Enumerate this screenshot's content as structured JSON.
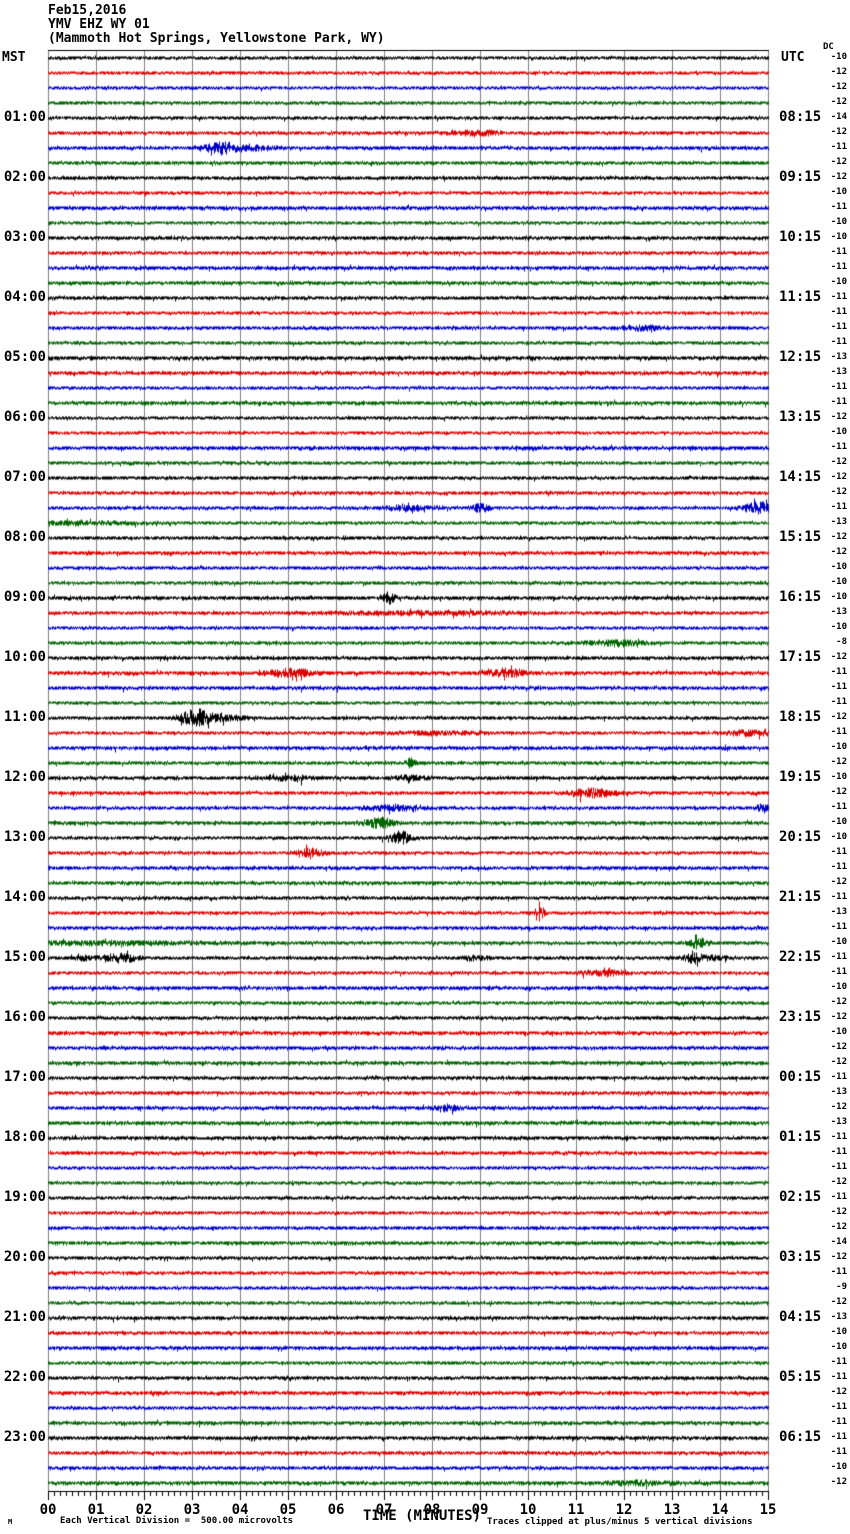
{
  "header": {
    "date": "Feb15,2016",
    "station": "YMV EHZ WY 01",
    "location": "(Mammoth Hot Springs, Yellowstone Park, WY)"
  },
  "axes": {
    "left_label": "MST",
    "right_label": "UTC",
    "dc_label": "DC",
    "x_title": "TIME (MINUTES)",
    "x_ticks": [
      "00",
      "01",
      "02",
      "03",
      "04",
      "05",
      "06",
      "07",
      "08",
      "09",
      "10",
      "11",
      "12",
      "13",
      "14",
      "15"
    ]
  },
  "footer": {
    "scale_note": "Each Vertical Division =  500.00 microvolts",
    "clip_note": "Traces clipped at plus/minus 5 vertical divisions",
    "corner_mark": "M"
  },
  "chart_data": {
    "type": "line",
    "subtype": "helicorder-seismogram",
    "x_range_minutes": [
      0,
      15
    ],
    "minutes_per_line": 15,
    "vertical_division_microvolts": 500.0,
    "clip_divisions": 5,
    "grid": true,
    "trace_colors": {
      "black": "#000000",
      "red": "#dd0000",
      "blue": "#0000cc",
      "green": "#006600"
    },
    "grid_color": "#808080",
    "rows": [
      {
        "m": "",
        "u": "",
        "c": "black",
        "dc": -10
      },
      {
        "m": "",
        "u": "",
        "c": "red",
        "dc": -12
      },
      {
        "m": "",
        "u": "",
        "c": "blue",
        "dc": -12
      },
      {
        "m": "",
        "u": "",
        "c": "green",
        "dc": -12
      },
      {
        "m": "01:00",
        "u": "08:15",
        "c": "black",
        "dc": -14
      },
      {
        "m": "",
        "u": "",
        "c": "red",
        "dc": -12,
        "e": [
          [
            8.9,
            0.3,
            2.5
          ]
        ]
      },
      {
        "m": "",
        "u": "",
        "c": "blue",
        "dc": -11,
        "e": [
          [
            3.6,
            0.25,
            5
          ],
          [
            4.25,
            0.3,
            2
          ]
        ]
      },
      {
        "m": "",
        "u": "",
        "c": "green",
        "dc": -12
      },
      {
        "m": "02:00",
        "u": "09:15",
        "c": "black",
        "dc": -12
      },
      {
        "m": "",
        "u": "",
        "c": "red",
        "dc": -10
      },
      {
        "m": "",
        "u": "",
        "c": "blue",
        "dc": -11
      },
      {
        "m": "",
        "u": "",
        "c": "green",
        "dc": -10
      },
      {
        "m": "03:00",
        "u": "10:15",
        "c": "black",
        "dc": -10
      },
      {
        "m": "",
        "u": "",
        "c": "red",
        "dc": -11
      },
      {
        "m": "",
        "u": "",
        "c": "blue",
        "dc": -11
      },
      {
        "m": "",
        "u": "",
        "c": "green",
        "dc": -10
      },
      {
        "m": "04:00",
        "u": "11:15",
        "c": "black",
        "dc": -11
      },
      {
        "m": "",
        "u": "",
        "c": "red",
        "dc": -11
      },
      {
        "m": "",
        "u": "",
        "c": "blue",
        "dc": -11,
        "e": [
          [
            12.4,
            0.3,
            1.8
          ]
        ]
      },
      {
        "m": "",
        "u": "",
        "c": "green",
        "dc": -11
      },
      {
        "m": "05:00",
        "u": "12:15",
        "c": "black",
        "dc": -13
      },
      {
        "m": "",
        "u": "",
        "c": "red",
        "dc": -13
      },
      {
        "m": "",
        "u": "",
        "c": "blue",
        "dc": -11
      },
      {
        "m": "",
        "u": "",
        "c": "green",
        "dc": -11
      },
      {
        "m": "06:00",
        "u": "13:15",
        "c": "black",
        "dc": -12
      },
      {
        "m": "",
        "u": "",
        "c": "red",
        "dc": -10
      },
      {
        "m": "",
        "u": "",
        "c": "blue",
        "dc": -11
      },
      {
        "m": "",
        "u": "",
        "c": "green",
        "dc": -12
      },
      {
        "m": "07:00",
        "u": "14:15",
        "c": "black",
        "dc": -12
      },
      {
        "m": "",
        "u": "",
        "c": "red",
        "dc": -12
      },
      {
        "m": "",
        "u": "",
        "c": "blue",
        "dc": -11,
        "e": [
          [
            7.5,
            0.4,
            2
          ],
          [
            9.0,
            0.12,
            4
          ],
          [
            14.8,
            0.2,
            6
          ]
        ]
      },
      {
        "m": "",
        "u": "",
        "c": "green",
        "dc": -13,
        "e": [
          [
            0.6,
            0.8,
            1.5
          ]
        ]
      },
      {
        "m": "08:00",
        "u": "15:15",
        "c": "black",
        "dc": -12
      },
      {
        "m": "",
        "u": "",
        "c": "red",
        "dc": -12
      },
      {
        "m": "",
        "u": "",
        "c": "blue",
        "dc": -10
      },
      {
        "m": "",
        "u": "",
        "c": "green",
        "dc": -10
      },
      {
        "m": "09:00",
        "u": "16:15",
        "c": "black",
        "dc": -10,
        "e": [
          [
            7.1,
            0.08,
            5
          ]
        ]
      },
      {
        "m": "",
        "u": "",
        "c": "red",
        "dc": -13,
        "e": [
          [
            7.8,
            1.2,
            1.5
          ]
        ]
      },
      {
        "m": "",
        "u": "",
        "c": "blue",
        "dc": -10
      },
      {
        "m": "",
        "u": "",
        "c": "green",
        "dc": -8,
        "e": [
          [
            11.8,
            0.4,
            2.5
          ]
        ]
      },
      {
        "m": "10:00",
        "u": "17:15",
        "c": "black",
        "dc": -12
      },
      {
        "m": "",
        "u": "",
        "c": "red",
        "dc": -11,
        "e": [
          [
            5.05,
            0.3,
            3.5
          ],
          [
            9.55,
            0.25,
            3.5
          ]
        ]
      },
      {
        "m": "",
        "u": "",
        "c": "blue",
        "dc": -11
      },
      {
        "m": "",
        "u": "",
        "c": "green",
        "dc": -11
      },
      {
        "m": "11:00",
        "u": "18:15",
        "c": "black",
        "dc": -12,
        "e": [
          [
            3.05,
            0.22,
            7
          ],
          [
            3.6,
            0.35,
            2.5
          ]
        ]
      },
      {
        "m": "",
        "u": "",
        "c": "red",
        "dc": -11,
        "e": [
          [
            8.1,
            0.7,
            1.5
          ],
          [
            14.6,
            0.35,
            2.5
          ]
        ]
      },
      {
        "m": "",
        "u": "",
        "c": "blue",
        "dc": -10
      },
      {
        "m": "",
        "u": "",
        "c": "green",
        "dc": -12,
        "e": [
          [
            7.55,
            0.06,
            4
          ]
        ]
      },
      {
        "m": "12:00",
        "u": "19:15",
        "c": "black",
        "dc": -10,
        "e": [
          [
            5.1,
            0.3,
            2
          ],
          [
            7.55,
            0.25,
            2
          ]
        ]
      },
      {
        "m": "",
        "u": "",
        "c": "red",
        "dc": -12,
        "e": [
          [
            11.35,
            0.3,
            4
          ]
        ]
      },
      {
        "m": "",
        "u": "",
        "c": "blue",
        "dc": -11,
        "e": [
          [
            7.2,
            0.4,
            2.5
          ],
          [
            14.9,
            0.12,
            3
          ]
        ]
      },
      {
        "m": "",
        "u": "",
        "c": "green",
        "dc": -10,
        "e": [
          [
            6.9,
            0.2,
            4.5
          ]
        ]
      },
      {
        "m": "13:00",
        "u": "20:15",
        "c": "black",
        "dc": -10,
        "e": [
          [
            7.35,
            0.15,
            6
          ]
        ]
      },
      {
        "m": "",
        "u": "",
        "c": "red",
        "dc": -11,
        "e": [
          [
            5.45,
            0.2,
            4
          ]
        ]
      },
      {
        "m": "",
        "u": "",
        "c": "blue",
        "dc": -11
      },
      {
        "m": "",
        "u": "",
        "c": "green",
        "dc": -12
      },
      {
        "m": "14:00",
        "u": "21:15",
        "c": "black",
        "dc": -11
      },
      {
        "m": "",
        "u": "",
        "c": "red",
        "dc": -13,
        "e": [
          [
            10.25,
            0.06,
            7
          ]
        ]
      },
      {
        "m": "",
        "u": "",
        "c": "blue",
        "dc": -11
      },
      {
        "m": "",
        "u": "",
        "c": "green",
        "dc": -10,
        "e": [
          [
            1.2,
            1.5,
            1.2
          ],
          [
            13.55,
            0.12,
            5
          ]
        ]
      },
      {
        "m": "15:00",
        "u": "22:15",
        "c": "black",
        "dc": -11,
        "e": [
          [
            0.75,
            0.15,
            2
          ],
          [
            1.5,
            0.25,
            4
          ],
          [
            8.9,
            0.2,
            2
          ],
          [
            13.45,
            0.15,
            4.5
          ],
          [
            13.9,
            0.15,
            2
          ]
        ]
      },
      {
        "m": "",
        "u": "",
        "c": "red",
        "dc": -11,
        "e": [
          [
            11.55,
            0.3,
            2.5
          ]
        ]
      },
      {
        "m": "",
        "u": "",
        "c": "blue",
        "dc": -10
      },
      {
        "m": "",
        "u": "",
        "c": "green",
        "dc": -12
      },
      {
        "m": "16:00",
        "u": "23:15",
        "c": "black",
        "dc": -12
      },
      {
        "m": "",
        "u": "",
        "c": "red",
        "dc": -10
      },
      {
        "m": "",
        "u": "",
        "c": "blue",
        "dc": -12
      },
      {
        "m": "",
        "u": "",
        "c": "green",
        "dc": -12
      },
      {
        "m": "17:00",
        "u": "00:15",
        "c": "black",
        "dc": -11
      },
      {
        "m": "",
        "u": "",
        "c": "red",
        "dc": -13
      },
      {
        "m": "",
        "u": "",
        "c": "blue",
        "dc": -12,
        "e": [
          [
            8.3,
            0.25,
            1.8
          ]
        ]
      },
      {
        "m": "",
        "u": "",
        "c": "green",
        "dc": -13
      },
      {
        "m": "18:00",
        "u": "01:15",
        "c": "black",
        "dc": -11
      },
      {
        "m": "",
        "u": "",
        "c": "red",
        "dc": -11
      },
      {
        "m": "",
        "u": "",
        "c": "blue",
        "dc": -11
      },
      {
        "m": "",
        "u": "",
        "c": "green",
        "dc": -12
      },
      {
        "m": "19:00",
        "u": "02:15",
        "c": "black",
        "dc": -11
      },
      {
        "m": "",
        "u": "",
        "c": "red",
        "dc": -12
      },
      {
        "m": "",
        "u": "",
        "c": "blue",
        "dc": -12
      },
      {
        "m": "",
        "u": "",
        "c": "green",
        "dc": -14
      },
      {
        "m": "20:00",
        "u": "03:15",
        "c": "black",
        "dc": -12
      },
      {
        "m": "",
        "u": "",
        "c": "red",
        "dc": -11
      },
      {
        "m": "",
        "u": "",
        "c": "blue",
        "dc": -9
      },
      {
        "m": "",
        "u": "",
        "c": "green",
        "dc": -12
      },
      {
        "m": "21:00",
        "u": "04:15",
        "c": "black",
        "dc": -13
      },
      {
        "m": "",
        "u": "",
        "c": "red",
        "dc": -10
      },
      {
        "m": "",
        "u": "",
        "c": "blue",
        "dc": -10
      },
      {
        "m": "",
        "u": "",
        "c": "green",
        "dc": -11
      },
      {
        "m": "22:00",
        "u": "05:15",
        "c": "black",
        "dc": -11
      },
      {
        "m": "",
        "u": "",
        "c": "red",
        "dc": -12
      },
      {
        "m": "",
        "u": "",
        "c": "blue",
        "dc": -11
      },
      {
        "m": "",
        "u": "",
        "c": "green",
        "dc": -11
      },
      {
        "m": "23:00",
        "u": "06:15",
        "c": "black",
        "dc": -11
      },
      {
        "m": "",
        "u": "",
        "c": "red",
        "dc": -11
      },
      {
        "m": "",
        "u": "",
        "c": "blue",
        "dc": -10
      },
      {
        "m": "",
        "u": "",
        "c": "green",
        "dc": -12,
        "e": [
          [
            12.3,
            0.4,
            1.5
          ]
        ]
      }
    ]
  }
}
